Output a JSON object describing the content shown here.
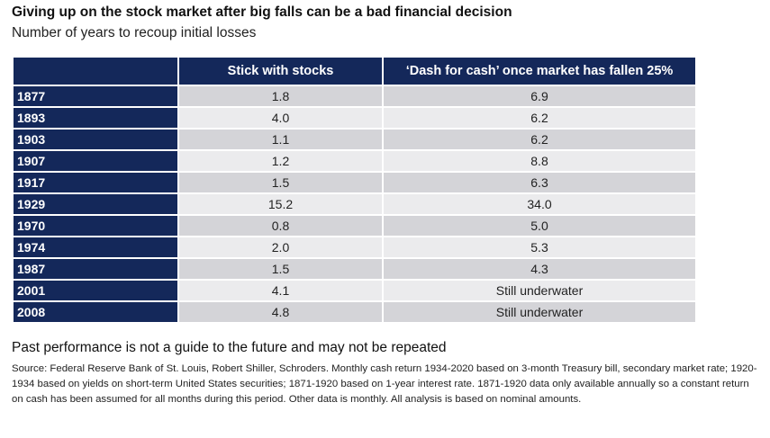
{
  "title": "Giving up on the stock market after big falls can be a bad financial decision",
  "subtitle": "Number of years to recoup initial losses",
  "chart_data": {
    "type": "table",
    "columns": [
      "",
      "Stick with stocks",
      "‘Dash for cash’ once market has fallen 25%"
    ],
    "rows": [
      {
        "year": "1877",
        "stick": "1.8",
        "dash": "6.9"
      },
      {
        "year": "1893",
        "stick": "4.0",
        "dash": "6.2"
      },
      {
        "year": "1903",
        "stick": "1.1",
        "dash": "6.2"
      },
      {
        "year": "1907",
        "stick": "1.2",
        "dash": "8.8"
      },
      {
        "year": "1917",
        "stick": "1.5",
        "dash": "6.3"
      },
      {
        "year": "1929",
        "stick": "15.2",
        "dash": "34.0"
      },
      {
        "year": "1970",
        "stick": "0.8",
        "dash": "5.0"
      },
      {
        "year": "1974",
        "stick": "2.0",
        "dash": "5.3"
      },
      {
        "year": "1987",
        "stick": "1.5",
        "dash": "4.3"
      },
      {
        "year": "2001",
        "stick": "4.1",
        "dash": "Still underwater"
      },
      {
        "year": "2008",
        "stick": "4.8",
        "dash": "Still underwater"
      }
    ]
  },
  "note": "Past performance is not a guide to the future and may not be repeated",
  "source": "Source: Federal Reserve Bank of St. Louis, Robert Shiller, Schroders. Monthly cash return 1934-2020 based on 3-month Treasury bill, secondary market rate; 1920-1934 based on yields on short-term United States securities; 1871-1920 based on 1-year interest rate. 1871-1920 data only available annually so a constant return on cash has been assumed for all months during this period. Other data is monthly. All analysis is based on nominal amounts.",
  "colors": {
    "header": "#14285a",
    "row_dark": "#d4d4d8",
    "row_light": "#ebebed"
  }
}
